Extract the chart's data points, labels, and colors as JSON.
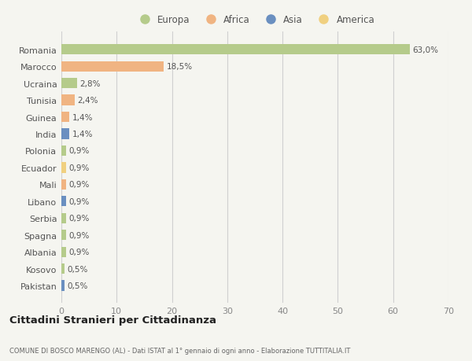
{
  "countries": [
    "Romania",
    "Marocco",
    "Ucraina",
    "Tunisia",
    "Guinea",
    "India",
    "Polonia",
    "Ecuador",
    "Mali",
    "Libano",
    "Serbia",
    "Spagna",
    "Albania",
    "Kosovo",
    "Pakistan"
  ],
  "values": [
    63.0,
    18.5,
    2.8,
    2.4,
    1.4,
    1.4,
    0.9,
    0.9,
    0.9,
    0.9,
    0.9,
    0.9,
    0.9,
    0.5,
    0.5
  ],
  "labels": [
    "63,0%",
    "18,5%",
    "2,8%",
    "2,4%",
    "1,4%",
    "1,4%",
    "0,9%",
    "0,9%",
    "0,9%",
    "0,9%",
    "0,9%",
    "0,9%",
    "0,9%",
    "0,5%",
    "0,5%"
  ],
  "continents": [
    "Europa",
    "Africa",
    "Europa",
    "Africa",
    "Africa",
    "Asia",
    "Europa",
    "America",
    "Africa",
    "Asia",
    "Europa",
    "Europa",
    "Europa",
    "Europa",
    "Asia"
  ],
  "continent_colors": {
    "Europa": "#b5cb8b",
    "Africa": "#f0b482",
    "Asia": "#6a8fc0",
    "America": "#f0d080"
  },
  "background_color": "#f5f5f0",
  "title": "Cittadini Stranieri per Cittadinanza",
  "subtitle": "COMUNE DI BOSCO MARENGO (AL) - Dati ISTAT al 1° gennaio di ogni anno - Elaborazione TUTTITALIA.IT",
  "xlim": [
    0,
    70
  ],
  "xticks": [
    0,
    10,
    20,
    30,
    40,
    50,
    60,
    70
  ],
  "legend_order": [
    "Europa",
    "Africa",
    "Asia",
    "America"
  ]
}
